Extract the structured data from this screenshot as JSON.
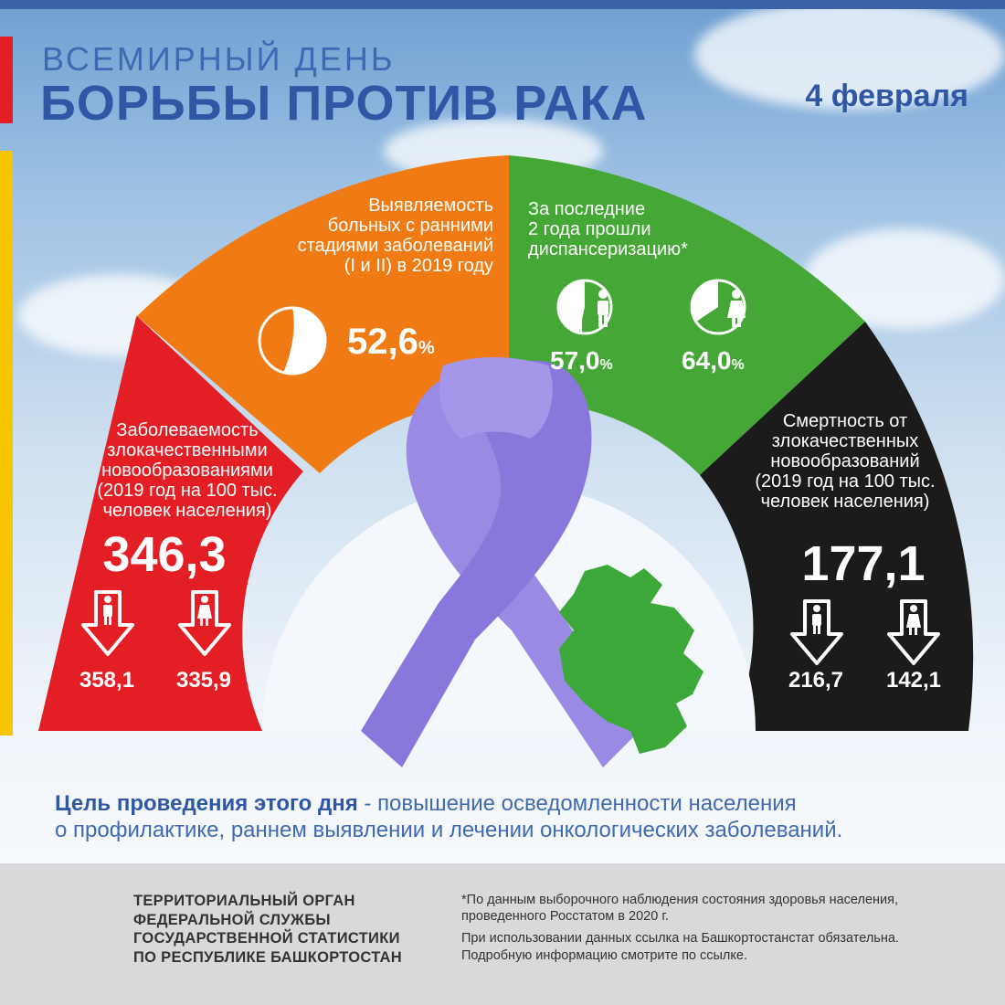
{
  "header": {
    "title_line1": "ВСЕМИРНЫЙ ДЕНЬ",
    "title_line2": "БОРЬБЫ ПРОТИВ РАКА",
    "date": "4 февраля"
  },
  "segments": {
    "incidence": {
      "text_lines": [
        "Заболеваемость",
        "злокачественными",
        "новообразованиями",
        "(2019 год на 100 тыс.",
        "человек населения)"
      ],
      "value": "346,3",
      "male_value": "358,1",
      "female_value": "335,9",
      "color": "#e31e24"
    },
    "detection": {
      "text_lines": [
        "Выявляемость",
        "больных с ранними",
        "стадиями заболеваний",
        "(I и II) в 2019 году"
      ],
      "value": "52,6",
      "unit": "%",
      "color": "#f07b14"
    },
    "screening": {
      "text_lines": [
        "За последние",
        "2 года прошли",
        "диспансеризацию*"
      ],
      "male_value": "57,0",
      "female_value": "64,0",
      "unit": "%",
      "color": "#45a735"
    },
    "mortality": {
      "text_lines": [
        "Смертность от",
        "злокачественных",
        "новообразований",
        "(2019 год на 100 тыс.",
        "человек населения)"
      ],
      "value": "177,1",
      "male_value": "216,7",
      "female_value": "142,1",
      "color": "#1b1b1b"
    }
  },
  "goal": {
    "bold": "Цель проведения этого дня",
    "rest_line1": " - повышение осведомленности населения",
    "line2": "о профилактике, раннем выявлении и лечении онкологических заболеваний."
  },
  "footer": {
    "org_lines": [
      "ТЕРРИТОРИАЛЬНЫЙ ОРГАН",
      "ФЕДЕРАЛЬНОЙ СЛУЖБЫ",
      "ГОСУДАРСТВЕННОЙ СТАТИСТИКИ",
      "ПО РЕСПУБЛИКЕ БАШКОРТОСТАН"
    ],
    "note_lines": [
      "*По данным выборочного наблюдения состояния здоровья населения,",
      "проведенного Росстатом в 2020 г."
    ],
    "note2_lines": [
      "При использовании данных ссылка на Башкортостанстат обязательна.",
      "Подробную информацию смотрите по ссылке."
    ]
  },
  "icons": {
    "male": "male-person-icon",
    "female": "female-person-icon",
    "arrow": "down-arrow-icon",
    "pie": "pie-icon",
    "ribbon": "cancer-ribbon-icon",
    "map": "bashkortostan-map-icon",
    "emblem": "coat-of-arms-icon"
  }
}
